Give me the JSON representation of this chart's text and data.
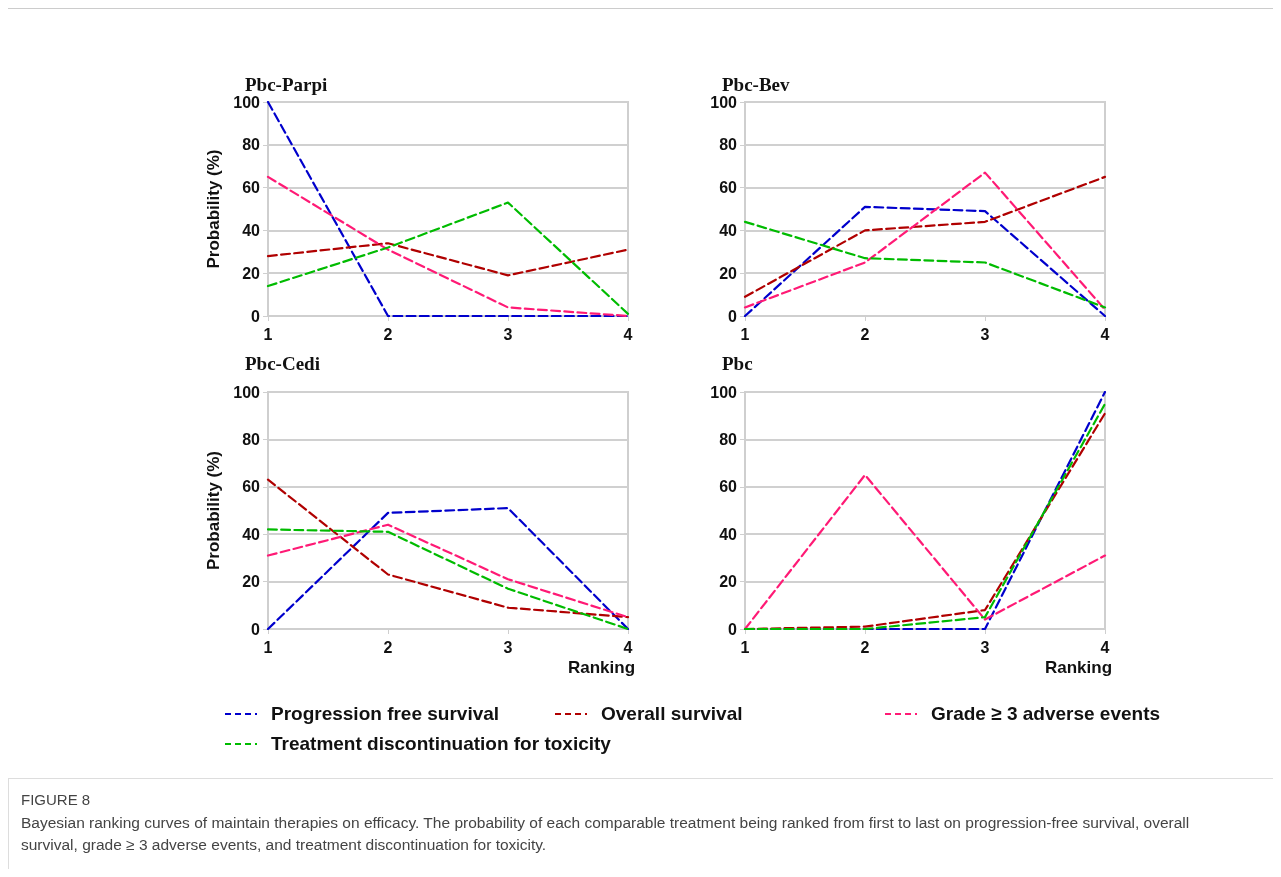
{
  "chart_data": [
    {
      "type": "line",
      "title": "Pbc-Parpi",
      "ylabel": "Probability (%)",
      "x": [
        1,
        2,
        3,
        4
      ],
      "xlim": [
        1,
        4
      ],
      "xticks": [
        1,
        2,
        3,
        4
      ],
      "ylim": [
        0,
        100
      ],
      "yticks": [
        0,
        20,
        40,
        60,
        80,
        100
      ],
      "grid": "y",
      "marker": "none",
      "line_style": "dashed",
      "annotations": [
        "FIGURE 8",
        "Bayesian ranking curves of maintain therapies on efficacy. The probability of each comparable treatment being ranked from first to last on progression-free survival, overall survival, grade ≥ 3 adverse events, and treatment discontinuation for toxicity."
      ],
      "series": [
        {
          "color": "#0000cc",
          "values": [
            100,
            0,
            0,
            0
          ]
        },
        {
          "color": "#b00000",
          "values": [
            28,
            34,
            19,
            31
          ]
        },
        {
          "color": "#ff1a75",
          "values": [
            65,
            31,
            4,
            0
          ]
        },
        {
          "color": "#00bb00",
          "values": [
            14,
            32,
            53,
            1
          ]
        }
      ]
    },
    {
      "type": "line",
      "title": "Pbc-Bev",
      "x": [
        1,
        2,
        3,
        4
      ],
      "xlim": [
        1,
        4
      ],
      "xticks": [
        1,
        2,
        3,
        4
      ],
      "ylim": [
        0,
        100
      ],
      "yticks": [
        0,
        20,
        40,
        60,
        80,
        100
      ],
      "grid": "y",
      "marker": "none",
      "line_style": "dashed",
      "series": [
        {
          "color": "#0000cc",
          "values": [
            0,
            51,
            49,
            0
          ]
        },
        {
          "color": "#b00000",
          "values": [
            9,
            40,
            44,
            65
          ]
        },
        {
          "color": "#ff1a75",
          "values": [
            4,
            25,
            67,
            3
          ]
        },
        {
          "color": "#00bb00",
          "values": [
            44,
            27,
            25,
            4
          ]
        }
      ]
    },
    {
      "type": "line",
      "title": "Pbc-Cedi",
      "xlabel": "Ranking",
      "ylabel": "Probability (%)",
      "x": [
        1,
        2,
        3,
        4
      ],
      "xlim": [
        1,
        4
      ],
      "xticks": [
        1,
        2,
        3,
        4
      ],
      "ylim": [
        0,
        100
      ],
      "yticks": [
        0,
        20,
        40,
        60,
        80,
        100
      ],
      "grid": "y",
      "marker": "none",
      "line_style": "dashed",
      "series": [
        {
          "color": "#0000cc",
          "values": [
            0,
            49,
            51,
            0
          ]
        },
        {
          "color": "#b00000",
          "values": [
            63,
            23,
            9,
            5
          ]
        },
        {
          "color": "#ff1a75",
          "values": [
            31,
            44,
            21,
            5
          ]
        },
        {
          "color": "#00bb00",
          "values": [
            42,
            41,
            17,
            0
          ]
        }
      ]
    },
    {
      "type": "line",
      "title": "Pbc",
      "xlabel": "Ranking",
      "x": [
        1,
        2,
        3,
        4
      ],
      "xlim": [
        1,
        4
      ],
      "xticks": [
        1,
        2,
        3,
        4
      ],
      "ylim": [
        0,
        100
      ],
      "yticks": [
        0,
        20,
        40,
        60,
        80,
        100
      ],
      "grid": "y",
      "legend": "bottom",
      "marker": "none",
      "line_style": "dashed",
      "series": [
        {
          "name": "Progression free survival",
          "color": "#0000cc",
          "values": [
            0,
            0,
            0,
            100
          ]
        },
        {
          "name": "Overall survival",
          "color": "#b00000",
          "values": [
            0,
            1,
            8,
            91
          ]
        },
        {
          "name": "Grade ≥ 3 adverse events",
          "color": "#ff1a75",
          "values": [
            0,
            65,
            4,
            31
          ]
        },
        {
          "name": "Treatment discontinuation for toxicity",
          "color": "#00bb00",
          "values": [
            0,
            0,
            5,
            95
          ]
        }
      ]
    }
  ]
}
